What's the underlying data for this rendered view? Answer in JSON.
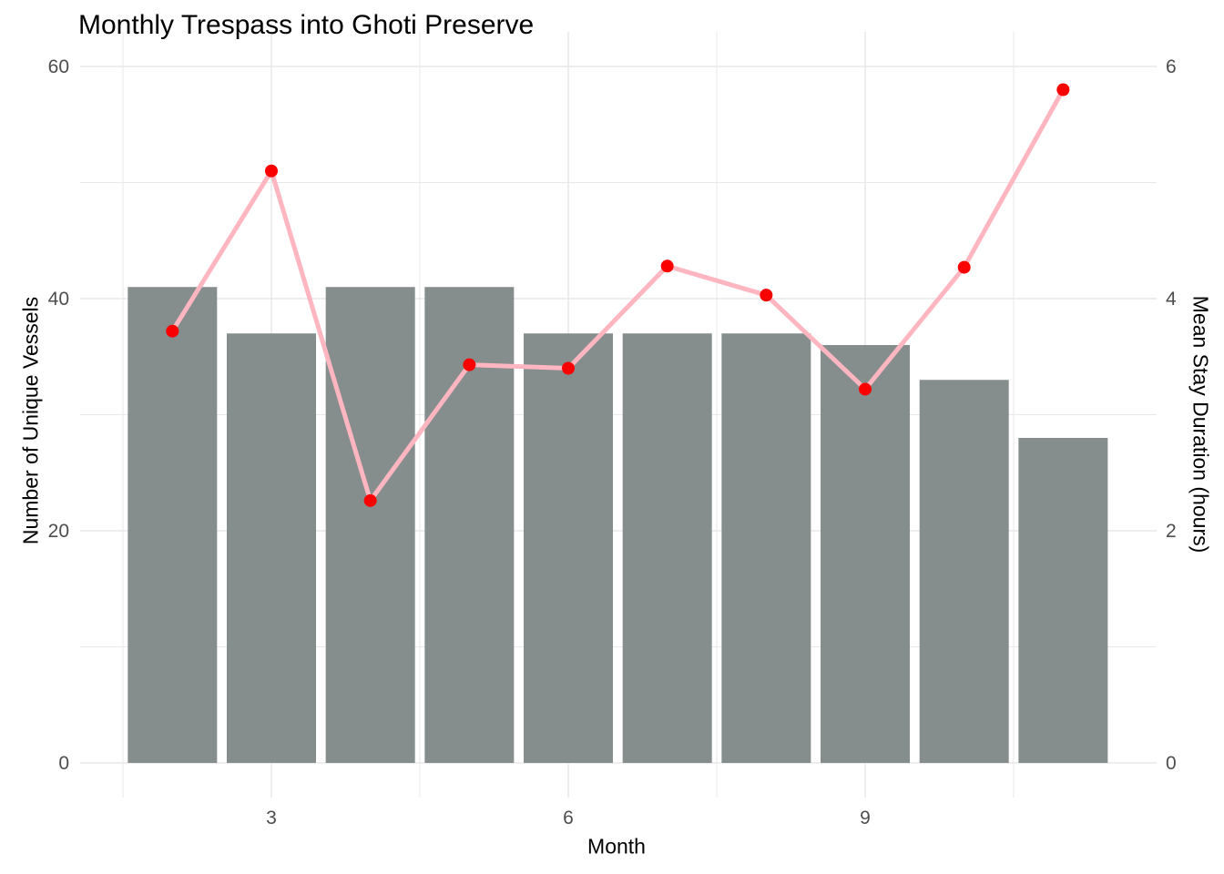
{
  "chart_data": {
    "type": "bar",
    "title": "Monthly Trespass into Ghoti Preserve",
    "xlabel": "Month",
    "ylabel_left": "Number of Unique Vessels",
    "ylabel_right": "Mean Stay Duration (hours)",
    "x": [
      2,
      3,
      4,
      5,
      6,
      7,
      8,
      9,
      10,
      11
    ],
    "series": [
      {
        "name": "Number of Unique Vessels",
        "type": "bar",
        "axis": "left",
        "values": [
          41,
          37,
          41,
          41,
          37,
          37,
          37,
          36,
          33,
          28
        ]
      },
      {
        "name": "Mean Stay Duration (hours)",
        "type": "line",
        "axis": "right",
        "values": [
          3.72,
          5.1,
          2.26,
          3.43,
          3.4,
          4.28,
          4.03,
          3.22,
          4.27,
          5.8
        ]
      }
    ],
    "axes": {
      "left": {
        "ticks": [
          0,
          20,
          40,
          60
        ],
        "minor": [
          10,
          30,
          50
        ],
        "range": [
          0,
          60
        ]
      },
      "right": {
        "ticks": [
          0,
          2,
          4,
          6
        ],
        "range": [
          0,
          6
        ]
      },
      "x": {
        "ticks": [
          3,
          6,
          9
        ],
        "minor": [
          1.5,
          4.5,
          7.5,
          10.5
        ]
      }
    },
    "grid": true,
    "legend": false,
    "colors": {
      "bar": "#858d8d",
      "line": "#ffb6c1",
      "point": "#fa0000",
      "grid": "#e9e9e9",
      "tick_text": "#4d4d4d",
      "background": "#ffffff"
    }
  }
}
